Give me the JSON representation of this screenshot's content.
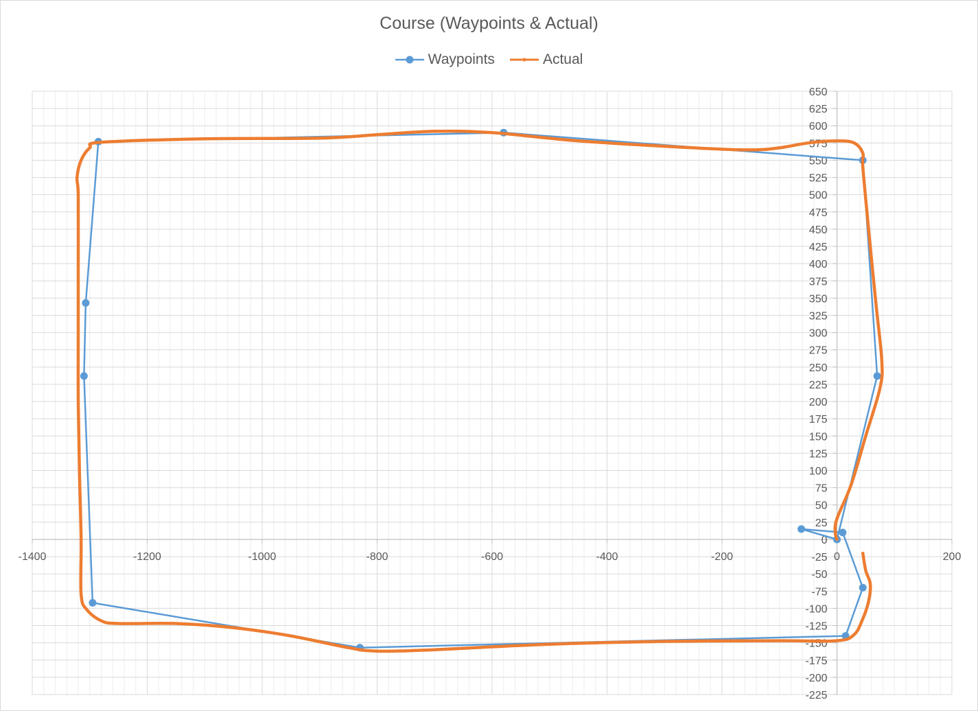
{
  "chart_data": {
    "type": "scatter",
    "title": "Course (Waypoints & Actual)",
    "xlim": [
      -1400,
      200
    ],
    "ylim": [
      -225,
      650
    ],
    "x_ticks": [
      -1400,
      -1200,
      -1000,
      -800,
      -600,
      -400,
      -200,
      0,
      200
    ],
    "y_ticks": [
      650,
      625,
      600,
      575,
      550,
      525,
      500,
      475,
      450,
      425,
      400,
      375,
      350,
      325,
      300,
      275,
      250,
      225,
      200,
      175,
      150,
      125,
      100,
      75,
      50,
      25,
      0,
      -25,
      -50,
      -75,
      -100,
      -125,
      -150,
      -175,
      -200,
      -225
    ],
    "grid": "major and minor",
    "legend_position": "top",
    "colors": {
      "waypoints": "#5b9bd5",
      "actual": "#ed7d31",
      "grid": "#d9d9d9",
      "text": "#595959"
    },
    "series": [
      {
        "name": "Waypoints",
        "style": "line-with-markers",
        "points": [
          [
            0,
            0
          ],
          [
            -62,
            15
          ],
          [
            10,
            10
          ],
          [
            45,
            -70
          ],
          [
            15,
            -140
          ],
          [
            -830,
            -157
          ],
          [
            -1295,
            -92
          ],
          [
            -1310,
            237
          ],
          [
            -1307,
            343
          ],
          [
            -1285,
            577
          ],
          [
            -580,
            590
          ],
          [
            45,
            550
          ],
          [
            70,
            237
          ],
          [
            0,
            0
          ]
        ]
      },
      {
        "name": "Actual",
        "style": "thick-line",
        "points": [
          [
            45,
            -20
          ],
          [
            50,
            -45
          ],
          [
            58,
            -65
          ],
          [
            55,
            -90
          ],
          [
            45,
            -115
          ],
          [
            30,
            -138
          ],
          [
            0,
            -147
          ],
          [
            -100,
            -147
          ],
          [
            -300,
            -148
          ],
          [
            -500,
            -152
          ],
          [
            -700,
            -160
          ],
          [
            -800,
            -162
          ],
          [
            -850,
            -157
          ],
          [
            -950,
            -140
          ],
          [
            -1050,
            -128
          ],
          [
            -1150,
            -122
          ],
          [
            -1250,
            -122
          ],
          [
            -1280,
            -118
          ],
          [
            -1305,
            -102
          ],
          [
            -1315,
            -80
          ],
          [
            -1315,
            0
          ],
          [
            -1318,
            100
          ],
          [
            -1320,
            200
          ],
          [
            -1320,
            300
          ],
          [
            -1320,
            400
          ],
          [
            -1320,
            500
          ],
          [
            -1322,
            525
          ],
          [
            -1315,
            550
          ],
          [
            -1300,
            568
          ],
          [
            -1280,
            576
          ],
          [
            -1100,
            581
          ],
          [
            -900,
            582
          ],
          [
            -800,
            587
          ],
          [
            -700,
            592
          ],
          [
            -600,
            590
          ],
          [
            -450,
            578
          ],
          [
            -250,
            568
          ],
          [
            -150,
            565
          ],
          [
            -100,
            568
          ],
          [
            -50,
            575
          ],
          [
            0,
            578
          ],
          [
            30,
            575
          ],
          [
            45,
            560
          ],
          [
            45,
            540
          ],
          [
            55,
            450
          ],
          [
            68,
            340
          ],
          [
            78,
            260
          ],
          [
            75,
            220
          ],
          [
            50,
            150
          ],
          [
            25,
            80
          ],
          [
            0,
            30
          ],
          [
            -3,
            10
          ],
          [
            0,
            0
          ]
        ]
      }
    ]
  }
}
